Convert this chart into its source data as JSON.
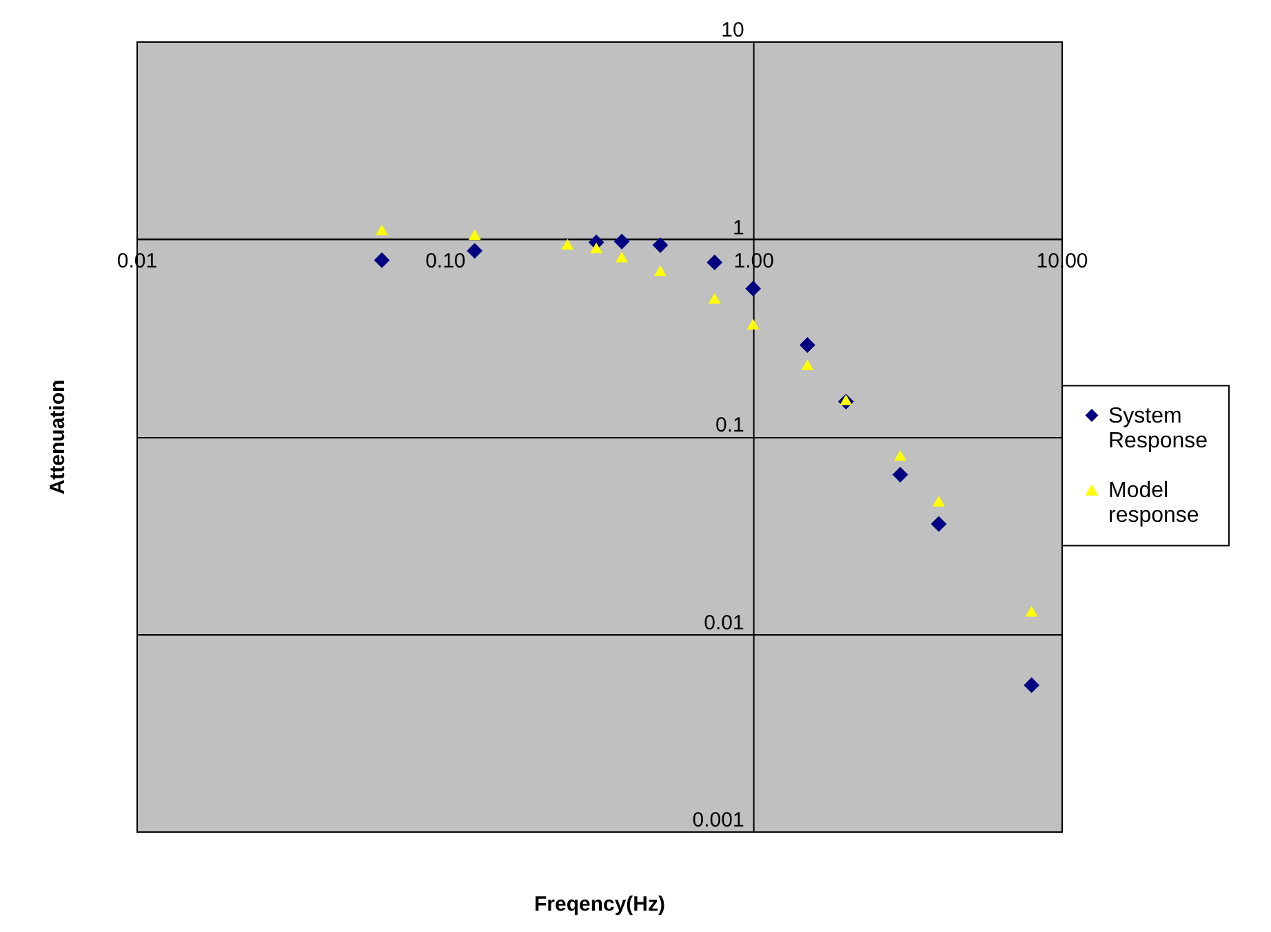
{
  "chart_data": {
    "type": "scatter",
    "xlabel": "Freqency(Hz)",
    "ylabel": "Attenuation",
    "log": "xy",
    "grid": "y",
    "legend": "right",
    "xlim": [
      0.01,
      10
    ],
    "xticks": [
      {
        "value": 0.01,
        "label": "0.01"
      },
      {
        "value": 0.1,
        "label": "0.10"
      },
      {
        "value": 1,
        "label": "1.00"
      },
      {
        "value": 10,
        "label": "10.00"
      }
    ],
    "ylim": [
      0.001,
      10
    ],
    "yticks": [
      0.001,
      0.01,
      0.1,
      1,
      10
    ],
    "series": [
      {
        "name": "System Response",
        "color": "#000080",
        "marker": "diamond",
        "x": [
          0.0625,
          0.125,
          0.31,
          0.375,
          0.5,
          0.75,
          1,
          1.5,
          2,
          3,
          4,
          8
        ],
        "values": [
          0.78,
          0.87,
          0.96,
          0.97,
          0.93,
          0.76,
          0.56,
          0.29,
          0.15,
          0.064,
          0.036,
          0.0055
        ]
      },
      {
        "name": "Model response",
        "color": "#ffff00",
        "marker": "triangle",
        "x": [
          0.0625,
          0.125,
          0.25,
          0.31,
          0.375,
          0.5,
          0.75,
          1,
          1.5,
          2,
          3,
          4,
          8
        ],
        "values": [
          1.11,
          1.05,
          0.94,
          0.9,
          0.81,
          0.69,
          0.5,
          0.37,
          0.23,
          0.153,
          0.08,
          0.047,
          0.013
        ]
      }
    ]
  }
}
